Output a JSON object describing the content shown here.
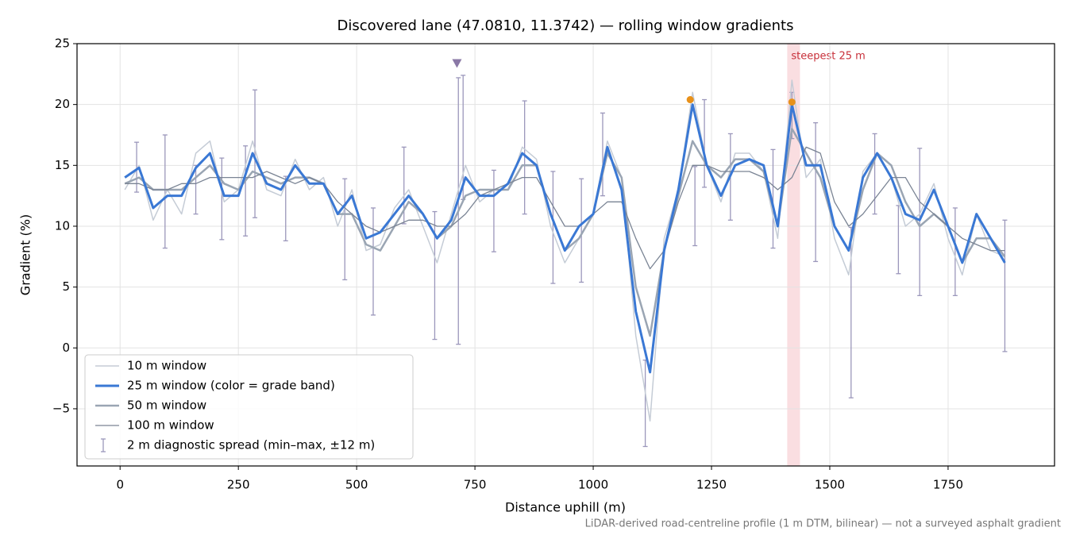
{
  "chart_data": {
    "type": "line",
    "title": "Discovered lane (47.0810, 11.3742) — rolling window gradients",
    "x_label": "Distance uphill (m)",
    "y_label": "Gradient (%)",
    "footer": "LiDAR-derived road-centreline profile (1 m DTM, bilinear) — not a surveyed asphalt gradient",
    "xlim": [
      -91,
      1975
    ],
    "ylim": [
      -9.7,
      25
    ],
    "xticks": [
      0,
      250,
      500,
      750,
      1000,
      1250,
      1500,
      1750
    ],
    "yticks": [
      {
        "value": -5,
        "label": "−5"
      },
      0,
      5,
      10,
      15,
      20,
      25
    ],
    "grid": true,
    "legend": "lower left",
    "x": [
      10,
      40,
      70,
      100,
      130,
      160,
      190,
      220,
      250,
      280,
      310,
      340,
      370,
      400,
      430,
      460,
      490,
      520,
      550,
      580,
      610,
      640,
      670,
      700,
      730,
      760,
      790,
      820,
      850,
      880,
      910,
      940,
      970,
      1000,
      1030,
      1060,
      1090,
      1120,
      1150,
      1180,
      1210,
      1240,
      1270,
      1300,
      1330,
      1360,
      1390,
      1420,
      1450,
      1480,
      1510,
      1540,
      1570,
      1600,
      1630,
      1660,
      1690,
      1720,
      1750,
      1780,
      1810,
      1840,
      1870
    ],
    "series": [
      {
        "name": "10 m window",
        "color": "#c5ccd6",
        "width": 1.5,
        "values": [
          13,
          15,
          10.5,
          13,
          11,
          16,
          17,
          12,
          13,
          17,
          13,
          12.5,
          15.5,
          13,
          14,
          10,
          13,
          8,
          8.5,
          11.5,
          13,
          10,
          7,
          11,
          15,
          12,
          13,
          13,
          16.5,
          15.5,
          10,
          7,
          9,
          11,
          17,
          14,
          1,
          -6,
          9,
          13,
          21,
          15,
          12,
          16,
          16,
          14.5,
          9,
          22,
          14,
          15.5,
          9,
          6,
          14.5,
          16,
          14,
          10,
          11,
          13.5,
          9,
          6,
          11,
          8,
          7.5
        ]
      },
      {
        "name": "25 m window (color = grade band)",
        "color": "#3a78d4",
        "width": 3,
        "values": [
          14,
          14.8,
          11.5,
          12.5,
          12.5,
          14.8,
          16,
          12.5,
          12.5,
          16,
          13.5,
          13,
          15,
          13.5,
          13.5,
          11,
          12.5,
          9,
          9.5,
          11,
          12.5,
          11,
          9,
          10.5,
          14,
          12.5,
          12.5,
          13.5,
          16,
          15,
          11,
          8,
          10,
          11,
          16.5,
          13,
          3,
          -2,
          8,
          13,
          20,
          15,
          12.5,
          15,
          15.5,
          15,
          10,
          20,
          15,
          15,
          10,
          8,
          14,
          16,
          14,
          11,
          10.5,
          13,
          10,
          7,
          11,
          9,
          7
        ]
      },
      {
        "name": "50 m window",
        "color": "#9aa5b3",
        "width": 2.5,
        "values": [
          13.5,
          14,
          13,
          13,
          13,
          14,
          15,
          13.5,
          13,
          14.5,
          14,
          13.5,
          14,
          14,
          13.5,
          11,
          11,
          8.5,
          8,
          10,
          12,
          11,
          9,
          10,
          12.5,
          13,
          13,
          13,
          15,
          15,
          11,
          8,
          9,
          11,
          16,
          14,
          5,
          1,
          8,
          12.5,
          17,
          15,
          14,
          15.5,
          15.5,
          14.5,
          10,
          18,
          16,
          14,
          10,
          8,
          13,
          16,
          15,
          12,
          10,
          11,
          10,
          7,
          9,
          9,
          7.5
        ]
      },
      {
        "name": "100 m window",
        "color": "#7a8494",
        "width": 1.3,
        "values": [
          13.5,
          13.5,
          13,
          13,
          13.5,
          13.5,
          14,
          14,
          14,
          14,
          14.5,
          14,
          13.5,
          14,
          13.5,
          12,
          11,
          10,
          9.5,
          10,
          10.5,
          10.5,
          10,
          10,
          11,
          12.5,
          13,
          13.5,
          14,
          14,
          12,
          10,
          10,
          11,
          12,
          12,
          9,
          6.5,
          8,
          12,
          15,
          15,
          14.5,
          14.5,
          14.5,
          14,
          13,
          14,
          16.5,
          16,
          12,
          10,
          11,
          12.5,
          14,
          14,
          12,
          11,
          10,
          9,
          8.5,
          8,
          8
        ]
      }
    ],
    "errorbars": {
      "name": "2 m diagnostic spread (min–max, ±12 m)",
      "color": "#9b97bb",
      "x": [
        35,
        95,
        160,
        215,
        265,
        285,
        350,
        475,
        535,
        600,
        665,
        715,
        725,
        790,
        855,
        915,
        975,
        1020,
        1110,
        1215,
        1235,
        1290,
        1380,
        1420,
        1470,
        1545,
        1595,
        1645,
        1690,
        1765,
        1870
      ],
      "low": [
        12.8,
        8.2,
        11,
        8.9,
        9.2,
        10.7,
        8.8,
        5.6,
        2.7,
        10.2,
        0.7,
        0.3,
        12.2,
        7.9,
        11,
        5.3,
        5.4,
        12.5,
        -8.1,
        8.4,
        13.2,
        10.5,
        8.2,
        17.2,
        7.1,
        -4.1,
        11,
        6.1,
        4.3,
        4.3,
        -0.3
      ],
      "high": [
        16.9,
        17.5,
        15,
        15.6,
        16.6,
        21.2,
        14.1,
        13.9,
        11.5,
        16.5,
        11.2,
        22.2,
        22.4,
        14.6,
        20.3,
        14.5,
        13.9,
        19.3,
        -1,
        14.9,
        20.4,
        17.6,
        16.3,
        21,
        18.5,
        9.9,
        17.6,
        11.7,
        16.4,
        11.5,
        10.5
      ]
    },
    "markers": [
      {
        "x": 712,
        "y": 23.4,
        "shape": "triangle",
        "color": "#8a78a6"
      },
      {
        "x": 1205,
        "y": 20.4,
        "shape": "dot",
        "color": "#e8911a"
      },
      {
        "x": 1420,
        "y": 20.2,
        "shape": "dot",
        "color": "#e8911a"
      }
    ],
    "highlight": {
      "x0": 1410,
      "x1": 1437,
      "label": "steepest 25 m",
      "color": "#f4b6bc",
      "label_color": "#c8303a"
    }
  }
}
